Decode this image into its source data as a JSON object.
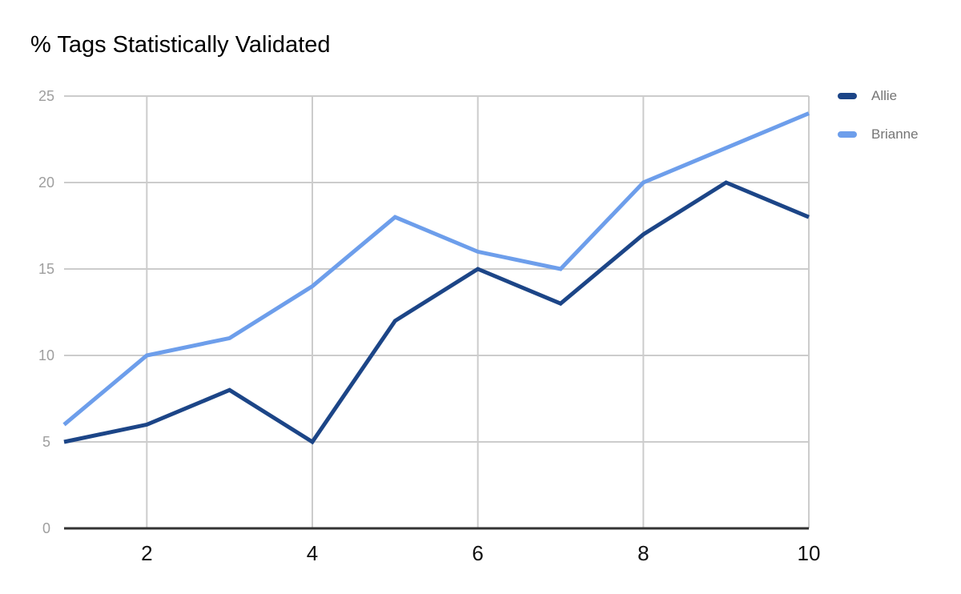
{
  "chart_data": {
    "type": "line",
    "title": "% Tags Statistically Validated",
    "x": [
      1,
      2,
      3,
      4,
      5,
      6,
      7,
      8,
      9,
      10
    ],
    "series": [
      {
        "name": "Allie",
        "color": "#1c4587",
        "values": [
          5,
          6,
          8,
          5,
          12,
          15,
          13,
          17,
          20,
          18
        ]
      },
      {
        "name": "Brianne",
        "color": "#6d9eeb",
        "values": [
          6,
          10,
          11,
          14,
          18,
          16,
          15,
          20,
          22,
          24
        ]
      }
    ],
    "xlabel": "",
    "ylabel": "",
    "xlim": [
      1,
      10
    ],
    "ylim": [
      0,
      25
    ],
    "xticks": [
      2,
      4,
      6,
      8,
      10
    ],
    "yticks": [
      0,
      5,
      10,
      15,
      20,
      25
    ],
    "grid": true,
    "legend_position": "right"
  },
  "colors": {
    "background": "#ffffff",
    "title": "#000000",
    "grid": "#cccccc",
    "axis": "#333333",
    "xtick_label": "#111111",
    "ytick_label": "#9e9e9e",
    "legend_label": "#757575"
  }
}
